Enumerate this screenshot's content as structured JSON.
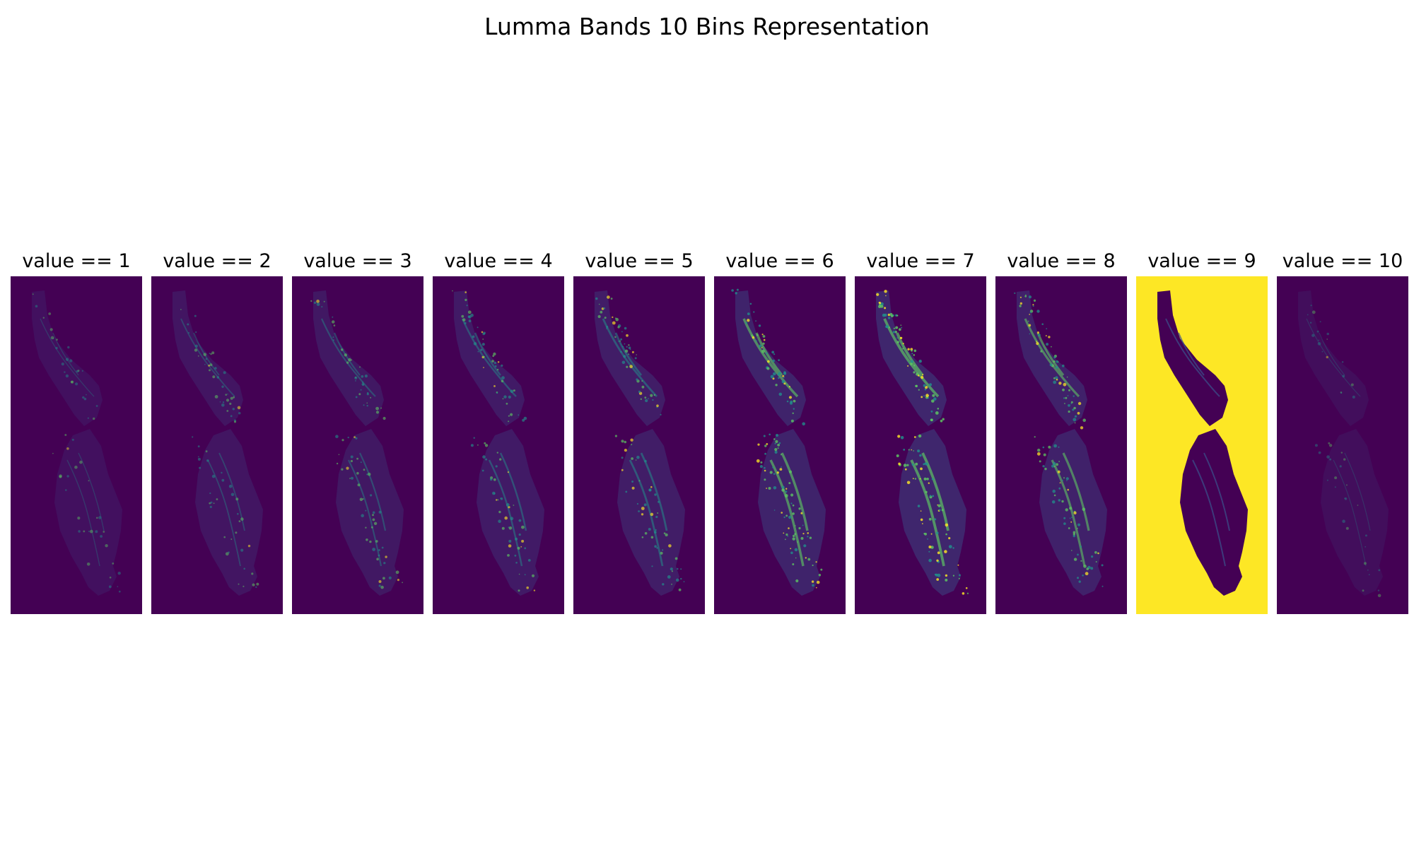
{
  "figure": {
    "title": "Lumma Bands 10 Bins Representation"
  },
  "colormap": {
    "name": "viridis",
    "background": "#440154",
    "dark": "#3b528b",
    "mid": "#21918c",
    "light": "#5ec962",
    "bright": "#fde725"
  },
  "panels": [
    {
      "title": "value == 1",
      "coverage": 0.1,
      "inverted": false
    },
    {
      "title": "value == 2",
      "coverage": 0.22,
      "inverted": false
    },
    {
      "title": "value == 3",
      "coverage": 0.3,
      "inverted": false
    },
    {
      "title": "value == 4",
      "coverage": 0.38,
      "inverted": false
    },
    {
      "title": "value == 5",
      "coverage": 0.45,
      "inverted": false
    },
    {
      "title": "value == 6",
      "coverage": 0.62,
      "inverted": false
    },
    {
      "title": "value == 7",
      "coverage": 0.7,
      "inverted": false
    },
    {
      "title": "value == 8",
      "coverage": 0.55,
      "inverted": false
    },
    {
      "title": "value == 9",
      "coverage": 1.0,
      "inverted": true
    },
    {
      "title": "value == 10",
      "coverage": 0.04,
      "inverted": false
    }
  ]
}
